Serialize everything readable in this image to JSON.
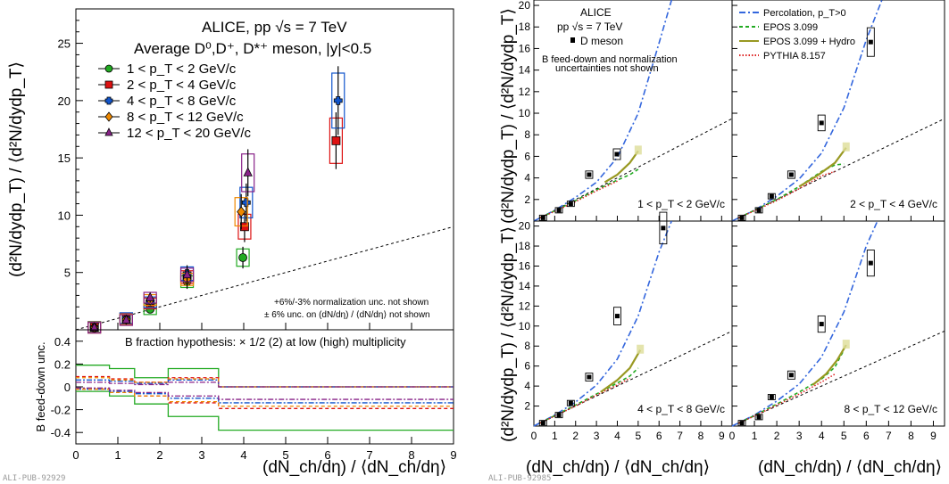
{
  "chart_data": [
    {
      "type": "scatter",
      "panel": "left-top",
      "title": "ALICE, pp √s = 7 TeV",
      "subtitle": "Average D⁰,D⁺, D*⁺ meson, |y|<0.5",
      "ylabel": "(d²N/dydp_T) / ⟨d²N/dydp_T⟩",
      "xlim": [
        0,
        9
      ],
      "ylim": [
        0,
        28
      ],
      "yticks": [
        5,
        10,
        15,
        20,
        25
      ],
      "notes": [
        "+6%/-3% normalization unc. not shown",
        "± 6% unc. on (dN/dη) / ⟨dN/dη⟩ not shown"
      ],
      "reference_line": {
        "x": [
          0,
          9
        ],
        "y": [
          0,
          9
        ],
        "style": "dashed"
      },
      "series": [
        {
          "name": "1 < p_T < 2 GeV/c",
          "color": "#22aa22",
          "marker": "circle",
          "x": [
            0.44,
            1.2,
            1.77,
            2.65,
            3.98
          ],
          "y": [
            0.25,
            0.95,
            1.8,
            4.2,
            6.3
          ]
        },
        {
          "name": "2 < p_T < 4 GeV/c",
          "color": "#dd1111",
          "marker": "square",
          "x": [
            0.44,
            1.2,
            1.77,
            2.65,
            4.02,
            6.2
          ],
          "y": [
            0.22,
            0.98,
            2.3,
            4.6,
            9.0,
            16.5
          ]
        },
        {
          "name": "4 < p_T < 8 GeV/c",
          "color": "#1155cc",
          "marker": "cross",
          "x": [
            0.44,
            1.2,
            1.77,
            2.65,
            4.06,
            6.25
          ],
          "y": [
            0.2,
            1.02,
            2.4,
            4.9,
            11.1,
            20.0
          ]
        },
        {
          "name": "8 < p_T < 12 GeV/c",
          "color": "#ee8800",
          "marker": "diamond",
          "x": [
            0.44,
            1.2,
            1.77,
            2.65,
            3.94
          ],
          "y": [
            0.18,
            0.9,
            2.6,
            4.4,
            10.3
          ]
        },
        {
          "name": "12 < p_T < 20 GeV/c",
          "color": "#882288",
          "marker": "triangle",
          "x": [
            0.44,
            1.2,
            1.77,
            2.65,
            4.1
          ],
          "y": [
            0.18,
            0.85,
            2.8,
            4.8,
            13.7
          ]
        }
      ]
    },
    {
      "type": "line",
      "panel": "left-bottom",
      "title": "B fraction hypothesis: × 1/2 (2) at low (high) multiplicity",
      "ylabel": "B feed-down unc.",
      "xlabel": "(dN_ch/dη) / ⟨dN_ch/dη⟩",
      "xlim": [
        0,
        9
      ],
      "ylim": [
        -0.5,
        0.5
      ],
      "yticks": [
        -0.4,
        -0.2,
        0,
        0.2,
        0.4
      ],
      "xticks": [
        0,
        1,
        2,
        3,
        4,
        5,
        6,
        7,
        8,
        9
      ],
      "bin_edges": [
        0,
        0.8,
        1.4,
        2.2,
        3.4,
        9
      ],
      "series": [
        {
          "name": "",
          "color": "#22aa22",
          "upper": [
            0.19,
            0.16,
            0.08,
            0.16,
            0.0
          ],
          "lower": [
            -0.04,
            -0.08,
            -0.15,
            -0.26,
            -0.38
          ]
        },
        {
          "name": "",
          "color": "#dd1111",
          "upper": [
            0.09,
            0.07,
            0.04,
            0.08,
            0.0
          ],
          "lower": [
            -0.02,
            -0.05,
            -0.08,
            -0.14,
            -0.19
          ]
        },
        {
          "name": "",
          "color": "#1155cc",
          "upper": [
            0.06,
            0.05,
            0.03,
            0.06,
            0.0
          ],
          "lower": [
            -0.02,
            -0.04,
            -0.06,
            -0.1,
            -0.14
          ]
        },
        {
          "name": "",
          "color": "#ee8800",
          "upper": [
            0.08,
            0.06,
            0.04,
            0.07,
            0.0
          ],
          "lower": [
            -0.02,
            -0.05,
            -0.08,
            -0.13,
            -0.17
          ]
        },
        {
          "name": "",
          "color": "#882288",
          "upper": [
            0.04,
            0.03,
            0.02,
            0.04,
            0.0
          ],
          "lower": [
            -0.01,
            -0.03,
            -0.05,
            -0.08,
            -0.11
          ]
        }
      ]
    },
    {
      "type": "scatter",
      "panel": "right-grid",
      "header": [
        "ALICE",
        "pp √s = 7 TeV",
        "D meson"
      ],
      "note": [
        "B feed-down and normalization",
        "uncertainties not shown"
      ],
      "ylabel": "(d²N/dydp_T) / ⟨d²N/dydp_T⟩",
      "xlabel": "(dN_ch/dη) / ⟨dN_ch/dη⟩",
      "xlim": [
        0,
        9.5
      ],
      "ylim": [
        0,
        20.5
      ],
      "xticks": [
        0,
        1,
        2,
        3,
        4,
        5,
        6,
        7,
        8,
        9
      ],
      "yticks": [
        2,
        4,
        6,
        8,
        10,
        12,
        14,
        16,
        18,
        20
      ],
      "models": [
        {
          "name": "Percolation, p_T>0",
          "color": "#3366dd",
          "style": "dashdot"
        },
        {
          "name": "EPOS 3.099",
          "color": "#22aa22",
          "style": "dashed"
        },
        {
          "name": "EPOS 3.099 + Hydro",
          "color": "#999922",
          "style": "solid"
        },
        {
          "name": "PYTHIA 8.157",
          "color": "#dd2222",
          "style": "dotted"
        }
      ],
      "panels": [
        {
          "label": "1 < p_T < 2 GeV/c",
          "x": [
            0.44,
            1.2,
            1.77,
            2.65,
            3.98
          ],
          "y": [
            0.3,
            1.0,
            1.6,
            4.3,
            6.2
          ],
          "perc": [
            [
              0,
              0
            ],
            [
              1,
              1
            ],
            [
              2,
              2.2
            ],
            [
              3,
              3.6
            ],
            [
              4,
              5.9
            ],
            [
              5,
              10.0
            ],
            [
              6,
              16.5
            ],
            [
              6.6,
              20.5
            ]
          ],
          "hydro": [
            [
              3.4,
              3.6
            ],
            [
              4,
              4.3
            ],
            [
              4.6,
              5.4
            ],
            [
              5,
              6.5
            ]
          ],
          "epos": [
            [
              0.3,
              0.3
            ],
            [
              1,
              0.95
            ],
            [
              2,
              1.9
            ],
            [
              3,
              2.9
            ],
            [
              4,
              3.8
            ],
            [
              4.6,
              4.3
            ],
            [
              5,
              4.8
            ]
          ],
          "pythia": [
            [
              0.3,
              0.3
            ],
            [
              1,
              0.9
            ],
            [
              2,
              1.8
            ],
            [
              3,
              2.8
            ],
            [
              4,
              3.7
            ]
          ]
        },
        {
          "label": "2 < p_T < 4 GeV/c",
          "x": [
            0.44,
            1.2,
            1.77,
            2.65,
            4.0,
            6.2
          ],
          "y": [
            0.3,
            1.0,
            2.3,
            4.3,
            9.1,
            16.6
          ],
          "perc": [
            [
              0,
              0
            ],
            [
              1,
              1
            ],
            [
              2,
              2.3
            ],
            [
              3,
              3.9
            ],
            [
              4,
              6.3
            ],
            [
              5,
              10.5
            ],
            [
              6,
              16.8
            ],
            [
              6.7,
              20.5
            ]
          ],
          "hydro": [
            [
              3.0,
              3.2
            ],
            [
              3.8,
              4.2
            ],
            [
              4.6,
              5.4
            ],
            [
              5.1,
              6.8
            ]
          ],
          "epos": [
            [
              0.3,
              0.3
            ],
            [
              1,
              1.0
            ],
            [
              2,
              2.0
            ],
            [
              3,
              3.2
            ],
            [
              4,
              4.6
            ],
            [
              4.6,
              5.2
            ],
            [
              5,
              5.3
            ]
          ],
          "pythia": [
            [
              0.3,
              0.3
            ],
            [
              1,
              0.95
            ],
            [
              2,
              1.9
            ],
            [
              3,
              3.0
            ],
            [
              4,
              4.2
            ],
            [
              4.6,
              4.6
            ]
          ]
        },
        {
          "label": "4 < p_T < 8 GeV/c",
          "x": [
            0.44,
            1.2,
            1.77,
            2.65,
            4.0,
            6.2
          ],
          "y": [
            0.3,
            1.1,
            2.3,
            4.9,
            11.0,
            19.8
          ],
          "perc": [
            [
              0,
              0
            ],
            [
              1,
              1.1
            ],
            [
              2,
              2.4
            ],
            [
              3,
              4.1
            ],
            [
              4,
              6.7
            ],
            [
              5,
              11.0
            ],
            [
              6,
              17.4
            ],
            [
              6.6,
              20.5
            ]
          ],
          "hydro": [
            [
              3.2,
              3.4
            ],
            [
              4,
              4.6
            ],
            [
              4.6,
              5.8
            ],
            [
              5.1,
              7.6
            ]
          ],
          "epos": [
            [
              0.3,
              0.3
            ],
            [
              1,
              1.05
            ],
            [
              2,
              2.1
            ],
            [
              3,
              3.2
            ],
            [
              4,
              4.3
            ],
            [
              4.6,
              5.0
            ],
            [
              5,
              5.8
            ]
          ],
          "pythia": [
            [
              0.3,
              0.3
            ],
            [
              1,
              1.0
            ],
            [
              2,
              2.0
            ],
            [
              3,
              3.1
            ],
            [
              4,
              4.1
            ],
            [
              4.6,
              4.8
            ]
          ]
        },
        {
          "label": "8 < p_T < 12 GeV/c",
          "x": [
            0.44,
            1.2,
            1.77,
            2.65,
            4.0,
            6.2
          ],
          "y": [
            0.3,
            0.9,
            2.9,
            5.1,
            10.2,
            16.3
          ],
          "perc": [
            [
              0,
              0
            ],
            [
              1,
              1.1
            ],
            [
              2,
              2.5
            ],
            [
              3,
              4.2
            ],
            [
              4,
              6.9
            ],
            [
              5,
              11.4
            ],
            [
              6,
              18.0
            ],
            [
              6.5,
              20.5
            ]
          ],
          "hydro": [
            [
              3.6,
              4.1
            ],
            [
              4.2,
              5.2
            ],
            [
              4.7,
              6.6
            ],
            [
              5.1,
              8.1
            ]
          ],
          "epos": [
            [
              0.3,
              0.3
            ],
            [
              1,
              1.05
            ],
            [
              2,
              2.2
            ],
            [
              3,
              3.4
            ],
            [
              4,
              4.7
            ],
            [
              4.6,
              5.9
            ],
            [
              5,
              7.6
            ]
          ],
          "pythia": [
            [
              0.3,
              0.3
            ],
            [
              1,
              1.0
            ],
            [
              2,
              2.1
            ],
            [
              3,
              3.2
            ],
            [
              4,
              4.4
            ],
            [
              4.6,
              5.2
            ]
          ]
        }
      ]
    }
  ],
  "watermarks": [
    "ALI-PUB-92929",
    "ALI-PUB-92985"
  ]
}
